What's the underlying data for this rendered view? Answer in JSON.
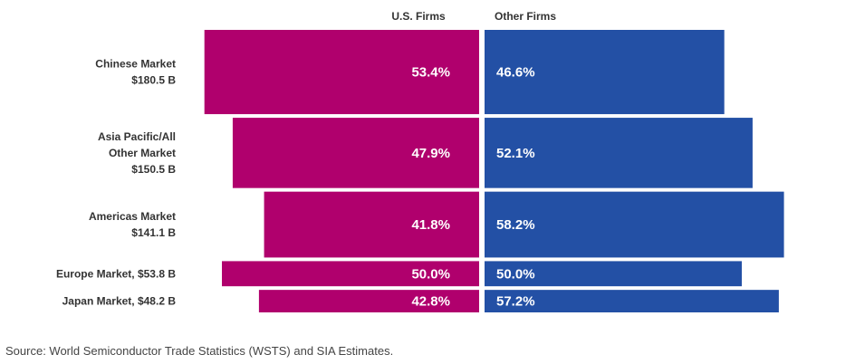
{
  "chart_data": {
    "type": "bar",
    "subtype": "marimekko-diverging",
    "series": [
      {
        "name": "U.S. Firms",
        "color": "#b0006d",
        "values": [
          53.4,
          47.9,
          41.8,
          50.0,
          42.8
        ]
      },
      {
        "name": "Other Firms",
        "color": "#2350a5",
        "values": [
          46.6,
          52.1,
          58.2,
          50.0,
          57.2
        ]
      }
    ],
    "categories": [
      {
        "label_lines": [
          "Chinese Market",
          "$180.5 B"
        ],
        "market_size": 180.5
      },
      {
        "label_lines": [
          "Asia Pacific/All",
          "Other Market",
          "$150.5 B"
        ],
        "market_size": 150.5
      },
      {
        "label_lines": [
          "Americas Market",
          "$141.1 B"
        ],
        "market_size": 141.1
      },
      {
        "label_lines": [
          "Europe Market, $53.8 B"
        ],
        "market_size": 53.8
      },
      {
        "label_lines": [
          "Japan Market, $48.2 B"
        ],
        "market_size": 48.2
      }
    ],
    "value_labels": {
      "us": [
        "53.4%",
        "47.9%",
        "41.8%",
        "50.0%",
        "42.8%"
      ],
      "other": [
        "46.6%",
        "52.1%",
        "58.2%",
        "50.0%",
        "57.2%"
      ]
    },
    "units": "percent share of market"
  },
  "source": "Source: World Semiconductor Trade Statistics (WSTS) and SIA Estimates."
}
